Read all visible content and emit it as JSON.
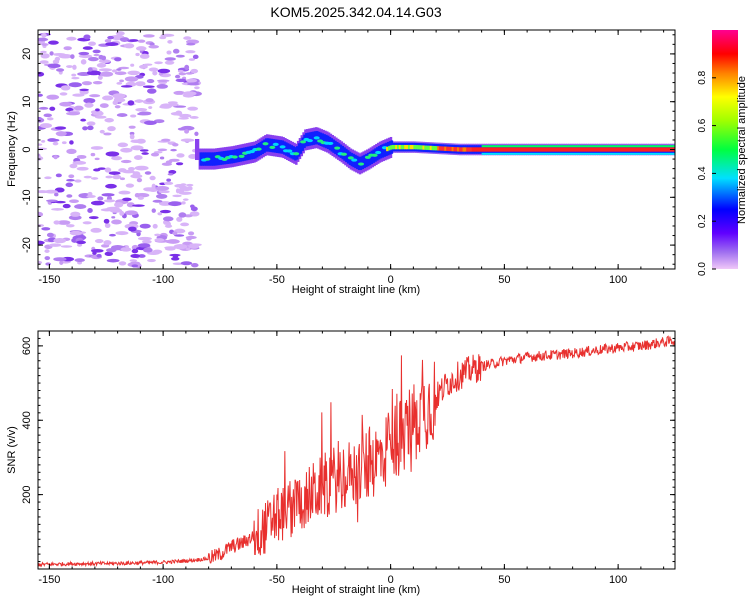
{
  "title": "KOM5.2025.342.04.14.G03",
  "chart_data": [
    {
      "type": "heatmap",
      "xlabel": "Height of straight line (km)",
      "ylabel": "Frequency (Hz)",
      "xlim": [
        -155,
        125
      ],
      "ylim": [
        -25,
        25
      ],
      "xticks": [
        -150,
        -100,
        -50,
        0,
        50,
        100
      ],
      "yticks": [
        -20,
        -10,
        0,
        10,
        20
      ],
      "colorbar": {
        "label": "Normalized spectral amplitude",
        "range": [
          0,
          1
        ],
        "ticks": [
          "0.0",
          "0.2",
          "0.4",
          "0.6",
          "0.8"
        ],
        "tick_values": [
          0,
          0.2,
          0.4,
          0.6,
          0.8
        ]
      },
      "ridge": {
        "description_points_x": [
          -85,
          -78,
          -70,
          -60,
          -55,
          -48,
          -42,
          -38,
          -33,
          -28,
          -22,
          -18,
          -14,
          -10,
          -5,
          0,
          10,
          30,
          60,
          125
        ],
        "description_points_freq": [
          -2,
          -2,
          -1.5,
          -0.5,
          1,
          0.5,
          -1,
          2,
          2.5,
          1.5,
          -0.5,
          -2,
          -3,
          -2,
          -0.5,
          0.5,
          0.5,
          0,
          0,
          0
        ]
      }
    },
    {
      "type": "line",
      "xlabel": "Height of straight line (km)",
      "ylabel": "SNR (v/v)",
      "xlim": [
        -155,
        125
      ],
      "ylim": [
        0,
        640
      ],
      "xticks": [
        -150,
        -100,
        -50,
        0,
        50,
        100
      ],
      "yticks": [
        200,
        400,
        600
      ],
      "series": [
        {
          "name": "SNR",
          "color": "#e8302e",
          "x": [
            -155,
            -140,
            -120,
            -100,
            -90,
            -80,
            -75,
            -70,
            -65,
            -60,
            -55,
            -50,
            -45,
            -40,
            -35,
            -30,
            -25,
            -20,
            -15,
            -10,
            -5,
            0,
            5,
            10,
            15,
            20,
            25,
            30,
            35,
            40,
            50,
            60,
            70,
            80,
            90,
            100,
            110,
            120,
            125
          ],
          "y": [
            12,
            14,
            15,
            18,
            22,
            28,
            40,
            60,
            70,
            90,
            110,
            140,
            160,
            180,
            200,
            220,
            240,
            250,
            260,
            280,
            300,
            330,
            360,
            400,
            430,
            460,
            500,
            520,
            535,
            545,
            560,
            570,
            575,
            580,
            588,
            595,
            600,
            610,
            615
          ]
        }
      ]
    }
  ]
}
